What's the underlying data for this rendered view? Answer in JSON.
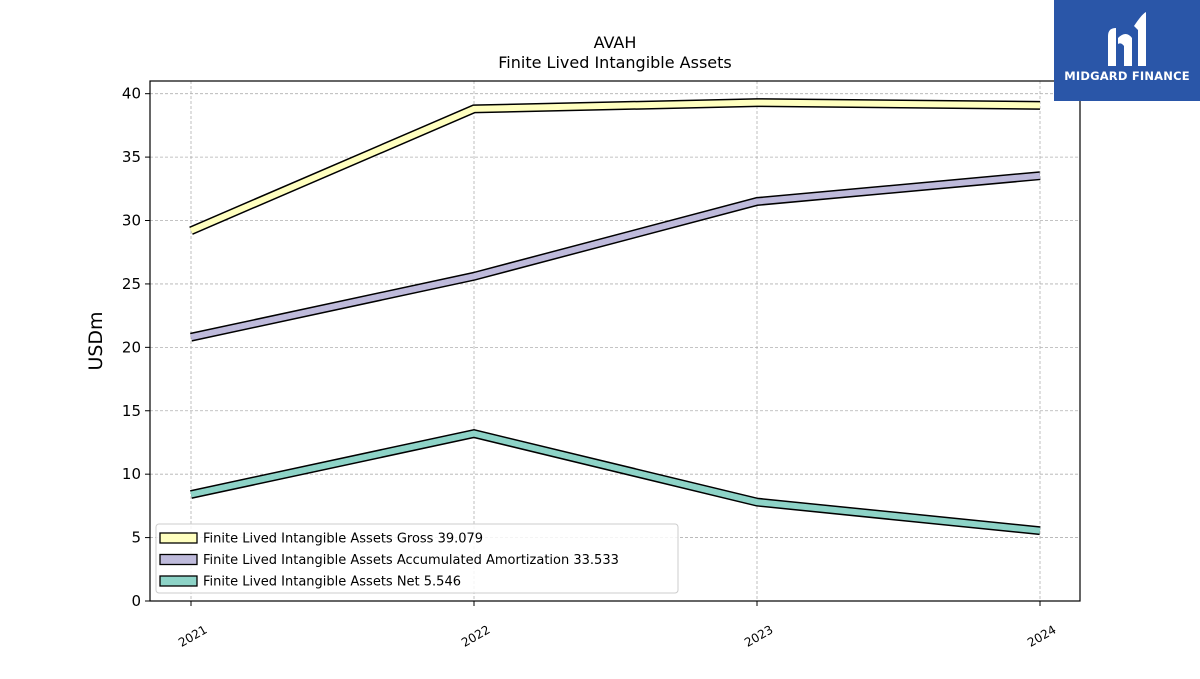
{
  "brand": {
    "name": "MIDGARD FINANCE",
    "bg_color": "#2a56a8"
  },
  "chart_data": {
    "type": "line",
    "title": "AVAH",
    "subtitle": "Finite Lived Intangible Assets",
    "xlabel": "",
    "ylabel": "USDm",
    "categories": [
      "2021",
      "2022",
      "2023",
      "2024"
    ],
    "ylim": [
      0,
      41
    ],
    "yticks": [
      0,
      5,
      10,
      15,
      20,
      25,
      30,
      35,
      40
    ],
    "grid": true,
    "legend_position": "lower-left",
    "series": [
      {
        "name": "Finite Lived Intangible Assets Gross",
        "legend_label": "Finite Lived Intangible Assets Gross  39.079",
        "values": [
          29.2,
          38.8,
          39.3,
          39.079
        ],
        "color": "#ffffbf"
      },
      {
        "name": "Finite Lived Intangible Assets Accumulated Amortization",
        "legend_label": "Finite Lived Intangible Assets Accumulated Amortization  33.533",
        "values": [
          20.8,
          25.6,
          31.5,
          33.533
        ],
        "color": "#bebadb"
      },
      {
        "name": "Finite Lived Intangible Assets Net",
        "legend_label": "Finite Lived Intangible Assets Net  5.546",
        "values": [
          8.4,
          13.2,
          7.8,
          5.546
        ],
        "color": "#8dd3c7"
      }
    ]
  }
}
